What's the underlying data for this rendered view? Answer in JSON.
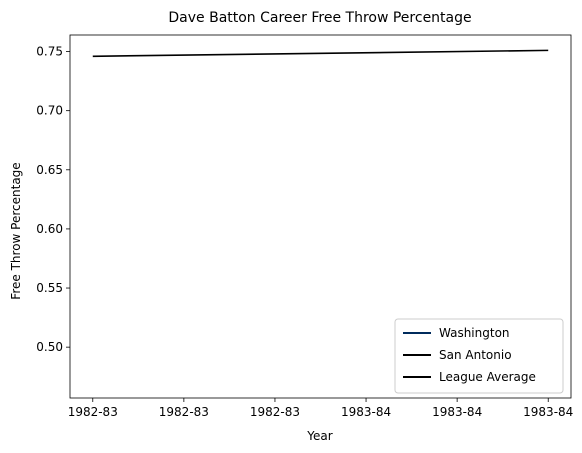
{
  "chart_data": {
    "type": "line",
    "title": "Dave Batton Career Free Throw Percentage",
    "xlabel": "Year",
    "ylabel": "Free Throw Percentage",
    "x_tick_labels": [
      "1982-83",
      "1982-83",
      "1982-83",
      "1983-84",
      "1983-84",
      "1983-84"
    ],
    "x": [
      0,
      1,
      2,
      3,
      4,
      5
    ],
    "xlim": [
      -0.25,
      5.25
    ],
    "ylim": [
      0.457,
      0.764
    ],
    "y_ticks": [
      0.5,
      0.55,
      0.6,
      0.65,
      0.7,
      0.75
    ],
    "y_tick_labels": [
      "0.50",
      "0.55",
      "0.60",
      "0.65",
      "0.70",
      "0.75"
    ],
    "grid": false,
    "legend_position": "lower-right",
    "series": [
      {
        "name": "Washington",
        "color": "#002b5c",
        "x": [],
        "y": []
      },
      {
        "name": "San Antonio",
        "color": "#000000",
        "x": [],
        "y": []
      },
      {
        "name": "League Average",
        "color": "#000000",
        "x": [
          0,
          5
        ],
        "y": [
          0.746,
          0.751
        ]
      }
    ]
  }
}
